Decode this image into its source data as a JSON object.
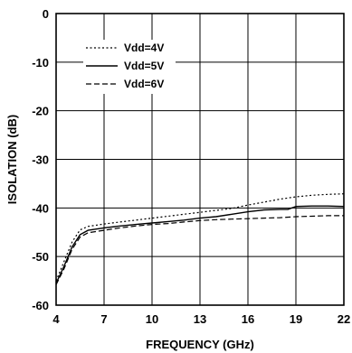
{
  "chart_data": {
    "type": "line",
    "title": "",
    "xlabel": "FREQUENCY (GHz)",
    "ylabel": "ISOLATION (dB)",
    "xlim": [
      4,
      22
    ],
    "ylim": [
      -60,
      0
    ],
    "x_ticks": [
      4,
      7,
      10,
      13,
      16,
      19,
      22
    ],
    "y_ticks": [
      0,
      -10,
      -20,
      -30,
      -40,
      -50,
      -60
    ],
    "grid": true,
    "legend_position": "top-left",
    "colors": {
      "line": "#000000",
      "grid": "#000000",
      "background": "#ffffff"
    },
    "series": [
      {
        "name": "Vdd=4V",
        "dash": "dotted",
        "x": [
          4,
          4.5,
          5,
          5.5,
          6,
          7,
          8,
          9,
          10,
          11,
          12,
          13,
          14,
          15,
          16,
          17,
          18,
          19,
          20,
          21,
          22
        ],
        "y": [
          -55,
          -51,
          -47,
          -44.5,
          -43.8,
          -43.3,
          -42.9,
          -42.5,
          -42.1,
          -41.7,
          -41.3,
          -40.9,
          -40.5,
          -40.1,
          -39.4,
          -38.8,
          -38.2,
          -37.7,
          -37.4,
          -37.2,
          -37.1
        ]
      },
      {
        "name": "Vdd=5V",
        "dash": "solid",
        "x": [
          4,
          4.5,
          5,
          5.5,
          6,
          7,
          8,
          9,
          10,
          11,
          12,
          13,
          14,
          15,
          16,
          17,
          18,
          18.5,
          19,
          20,
          21,
          22
        ],
        "y": [
          -55.5,
          -52,
          -48,
          -45.5,
          -44.6,
          -44.1,
          -43.7,
          -43.4,
          -43.1,
          -42.8,
          -42.5,
          -42.1,
          -41.8,
          -41.3,
          -40.8,
          -40.4,
          -40.3,
          -40.3,
          -39.7,
          -39.6,
          -39.6,
          -39.7
        ]
      },
      {
        "name": "Vdd=6V",
        "dash": "dashed",
        "x": [
          4,
          4.5,
          5,
          5.5,
          6,
          7,
          8,
          9,
          10,
          11,
          12,
          13,
          14,
          15,
          16,
          17,
          18,
          19,
          20,
          21,
          22
        ],
        "y": [
          -55.8,
          -52.5,
          -48.5,
          -46,
          -45.1,
          -44.6,
          -44.1,
          -43.7,
          -43.4,
          -43.2,
          -42.9,
          -42.6,
          -42.4,
          -42.3,
          -42.2,
          -42.1,
          -42.0,
          -41.8,
          -41.7,
          -41.6,
          -41.6
        ]
      }
    ]
  }
}
